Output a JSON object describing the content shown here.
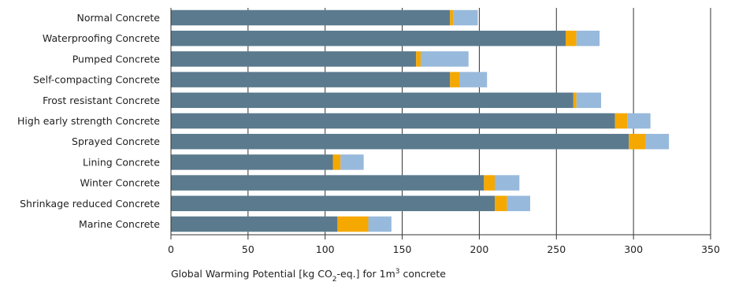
{
  "chart_data": {
    "type": "bar",
    "orientation": "horizontal",
    "stacked": true,
    "categories": [
      "Normal Concrete",
      "Waterproofing Concrete",
      "Pumped Concrete",
      "Self-compacting Concrete",
      "Frost resistant Concrete",
      "High early strength Concrete",
      "Sprayed Concrete",
      "Lining Concrete",
      "Winter Concrete",
      "Shrinkage reduced Concrete",
      "Marine Concrete"
    ],
    "series": [
      {
        "values": [
          181,
          256,
          159,
          181,
          261,
          288,
          297,
          105,
          203,
          210,
          108
        ],
        "color": "#5b7a8e"
      },
      {
        "values": [
          2,
          7,
          3,
          6,
          2,
          8,
          11,
          5,
          7,
          8,
          20
        ],
        "color": "#f5a800"
      },
      {
        "values": [
          16,
          15,
          31,
          18,
          16,
          15,
          15,
          15,
          16,
          15,
          15
        ],
        "color": "#97b9dc"
      }
    ],
    "xlim": [
      0,
      350
    ],
    "xticks": [
      0,
      50,
      100,
      150,
      200,
      250,
      300,
      350
    ],
    "xlabel_parts": {
      "pre": "Global Warming Potential [kg CO",
      "sub": "2",
      "mid": "-eq.] for 1m",
      "sup": "3",
      "post": " concrete"
    },
    "grid": "vertical",
    "legend": "none"
  }
}
